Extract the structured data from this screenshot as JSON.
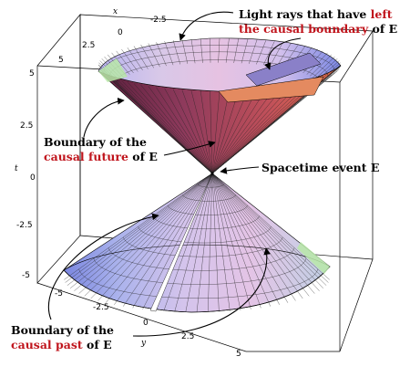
{
  "axes": {
    "x_label": "x",
    "y_label": "y",
    "t_label": "t",
    "x_ticks": [
      "-2.5",
      "0",
      "2.5",
      "5"
    ],
    "y_ticks": [
      "-5",
      "-2.5",
      "0",
      "2.5",
      "5"
    ],
    "t_ticks": [
      "5",
      "2.5",
      "0",
      "-2.5",
      "-5"
    ]
  },
  "annotations": {
    "light_rays": {
      "line1_prefix": "Light rays that have ",
      "line1_red": "left",
      "line2_red": "the causal boundary",
      "line2_suffix": " of E"
    },
    "future": {
      "line1": "Boundary of the",
      "line2_red": "causal future",
      "line2_suffix": " of E"
    },
    "event": {
      "text": "Spacetime event E"
    },
    "past": {
      "line1": "Boundary of the",
      "line2_red": "causal past",
      "line2_suffix": " of E"
    }
  },
  "colors": {
    "highlight_red": "#c0141c",
    "cone_lavender": "#c8b4e0",
    "cone_blue": "#7a8ae0",
    "cone_pink": "#e0b0d8",
    "inner_maroon": "#8a3050",
    "inner_orange": "#e07050",
    "rim_green": "#a8e0a0"
  }
}
